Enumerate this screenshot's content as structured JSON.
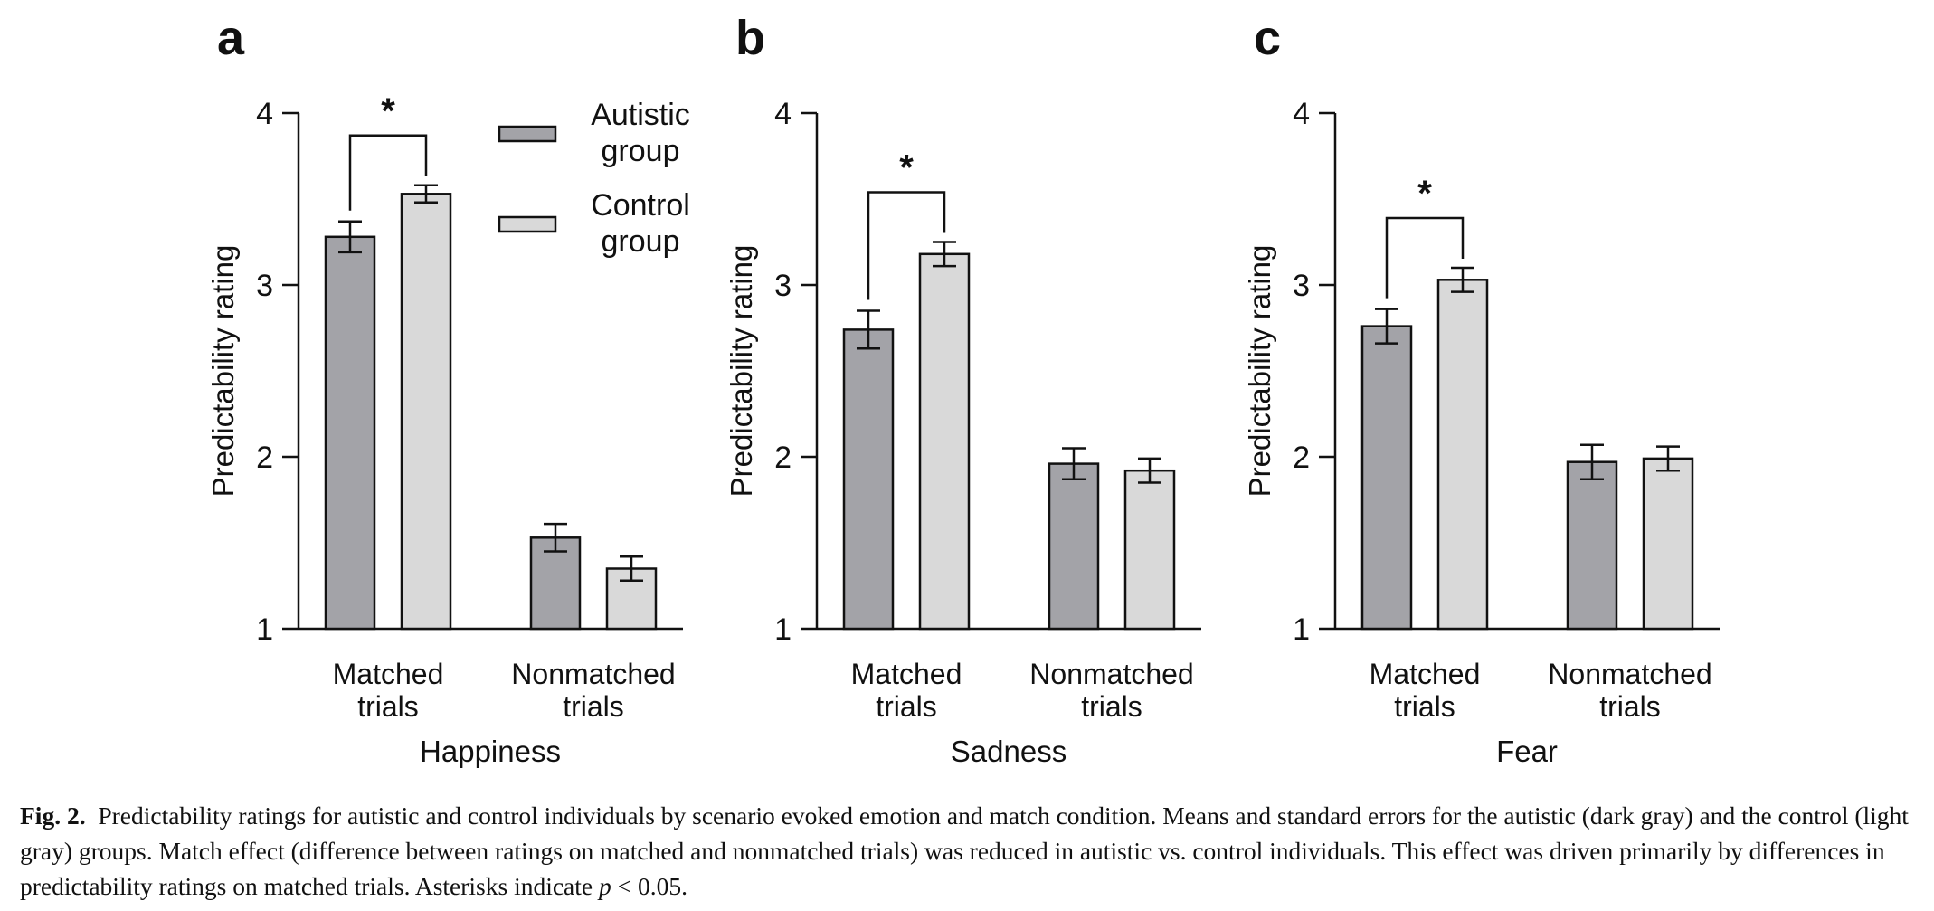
{
  "chart_data": [
    {
      "type": "bar",
      "panel": "a",
      "title": "Happiness",
      "ylabel": "Predictability rating",
      "ylim": [
        1,
        4
      ],
      "yticks": [
        "1",
        "2",
        "3",
        "4"
      ],
      "categories": [
        "Matched\ntrials",
        "Nonmatched\ntrials"
      ],
      "series": [
        {
          "name": "Autistic\ngroup",
          "color": "#a3a3a8",
          "values": [
            3.28,
            1.53
          ],
          "errors": [
            0.09,
            0.08
          ]
        },
        {
          "name": "Control\ngroup",
          "color": "#d9d9d9",
          "values": [
            3.53,
            1.35
          ],
          "errors": [
            0.05,
            0.07
          ]
        }
      ],
      "significance": [
        {
          "category": 0,
          "label": "*"
        }
      ],
      "legend": "top-right"
    },
    {
      "type": "bar",
      "panel": "b",
      "title": "Sadness",
      "ylabel": "Predictability rating",
      "ylim": [
        1,
        4
      ],
      "yticks": [
        "1",
        "2",
        "3",
        "4"
      ],
      "categories": [
        "Matched\ntrials",
        "Nonmatched\ntrials"
      ],
      "series": [
        {
          "name": "Autistic\ngroup",
          "color": "#a3a3a8",
          "values": [
            2.74,
            1.96
          ],
          "errors": [
            0.11,
            0.09
          ]
        },
        {
          "name": "Control\ngroup",
          "color": "#d9d9d9",
          "values": [
            3.18,
            1.92
          ],
          "errors": [
            0.07,
            0.07
          ]
        }
      ],
      "significance": [
        {
          "category": 0,
          "label": "*"
        }
      ]
    },
    {
      "type": "bar",
      "panel": "c",
      "title": "Fear",
      "ylabel": "Predictability rating",
      "ylim": [
        1,
        4
      ],
      "yticks": [
        "1",
        "2",
        "3",
        "4"
      ],
      "categories": [
        "Matched\ntrials",
        "Nonmatched\ntrials"
      ],
      "series": [
        {
          "name": "Autistic\ngroup",
          "color": "#a3a3a8",
          "values": [
            2.76,
            1.97
          ],
          "errors": [
            0.1,
            0.1
          ]
        },
        {
          "name": "Control\ngroup",
          "color": "#d9d9d9",
          "values": [
            3.03,
            1.99
          ],
          "errors": [
            0.07,
            0.07
          ]
        }
      ],
      "significance": [
        {
          "category": 0,
          "label": "*"
        }
      ]
    }
  ],
  "caption": {
    "label": "Fig. 2.",
    "text_1": "Predictability ratings for autistic and control individuals by scenario evoked emotion and match condition. Means and standard errors for the autistic (dark gray) and the control (light gray) groups. Match effect (difference between ratings on matched and nonmatched trials) was reduced in autistic vs. control individuals. This effect was driven primarily by differences in predictability ratings on matched trials. Asterisks indicate",
    "p_symbol": "p",
    "text_2": "< 0.05."
  }
}
